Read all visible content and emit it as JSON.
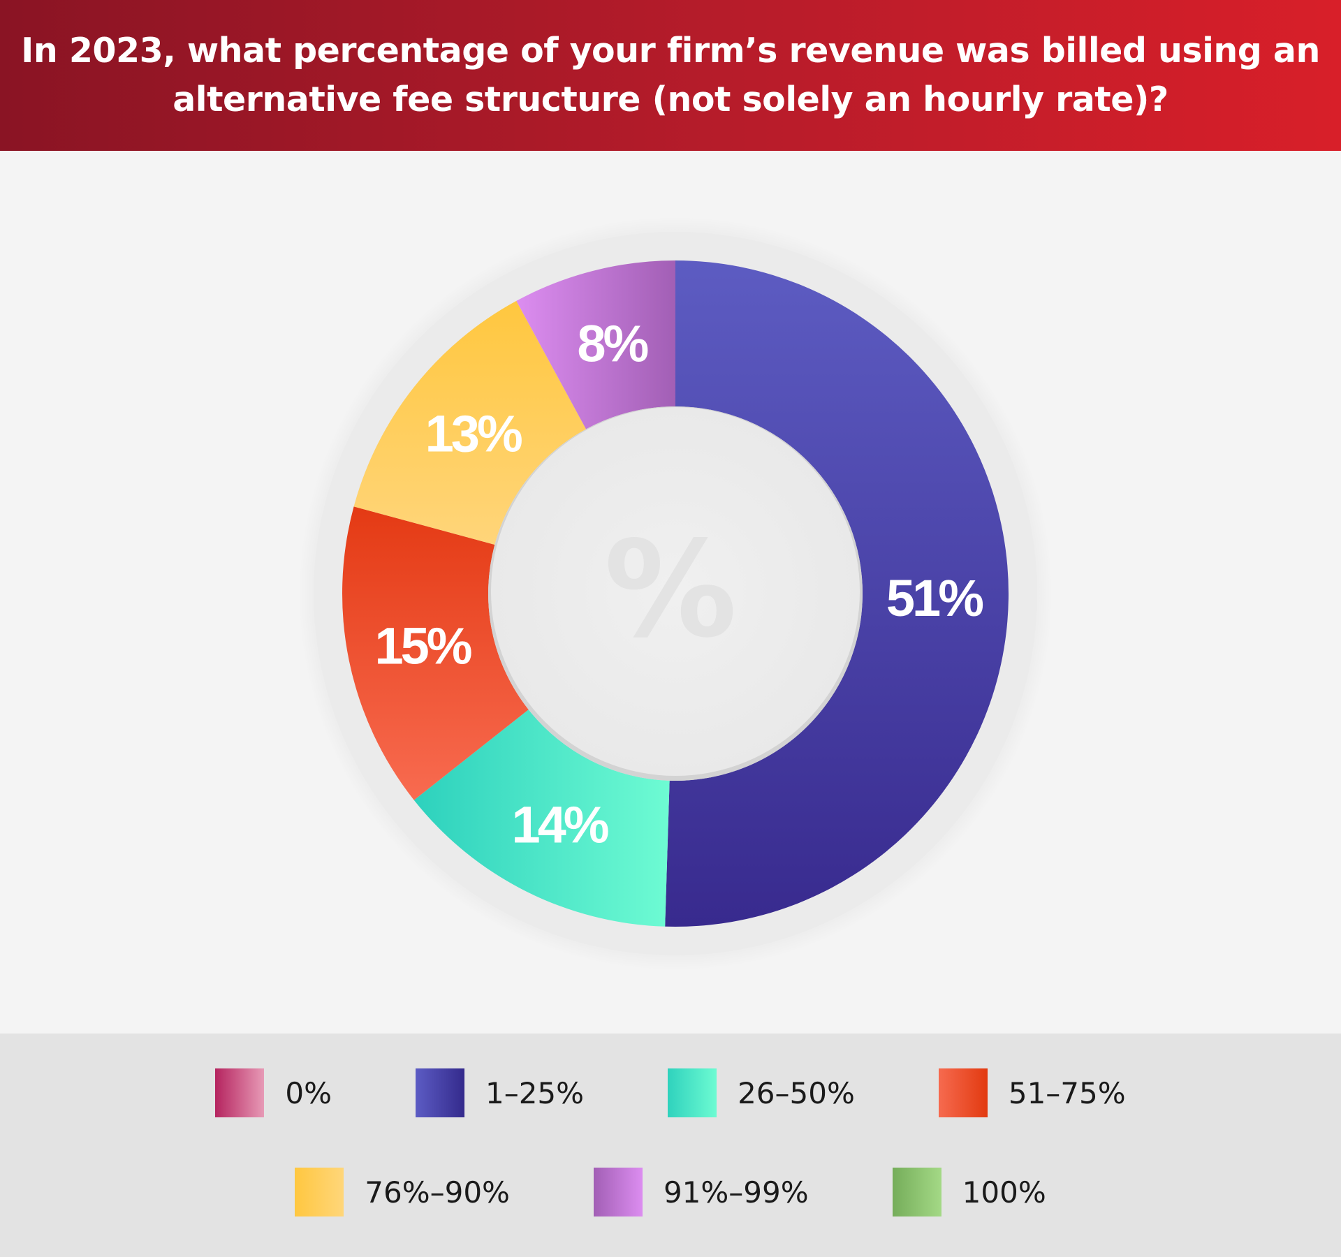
{
  "header": {
    "title": "In 2023, what percentage of your firm’s revenue was billed using an alternative fee structure (not solely an hourly rate)?"
  },
  "chart_data": {
    "type": "pie",
    "variant": "donut",
    "center_symbol": "%",
    "slices": [
      {
        "category": "1–25%",
        "value": 51,
        "label": "51%",
        "color": "#4a3fb0"
      },
      {
        "category": "26–50%",
        "value": 14,
        "label": "14%",
        "color": "#3ee3c4"
      },
      {
        "category": "51–75%",
        "value": 15,
        "label": "15%",
        "color": "#ec4e2a"
      },
      {
        "category": "76%–90%",
        "value": 13,
        "label": "13%",
        "color": "#ffc84f"
      },
      {
        "category": "91%–99%",
        "value": 8,
        "label": "8%",
        "color": "#c174d8"
      }
    ],
    "legend": [
      {
        "label": "0%",
        "color_a": "#b5245f",
        "color_b": "#e79ab6"
      },
      {
        "label": "1–25%",
        "color_a": "#5c5cc4",
        "color_b": "#342a8c"
      },
      {
        "label": "26–50%",
        "color_a": "#2fd2bd",
        "color_b": "#6dfbd2"
      },
      {
        "label": "51–75%",
        "color_a": "#f66a4f",
        "color_b": "#e23a10"
      },
      {
        "label": "76%–90%",
        "color_a": "#ffc740",
        "color_b": "#ffd67a"
      },
      {
        "label": "91%–99%",
        "color_a": "#a25fb5",
        "color_b": "#dc8df0"
      },
      {
        "label": "100%",
        "color_a": "#75ad5a",
        "color_b": "#a4d986"
      }
    ],
    "legend_placement": "bottom"
  }
}
